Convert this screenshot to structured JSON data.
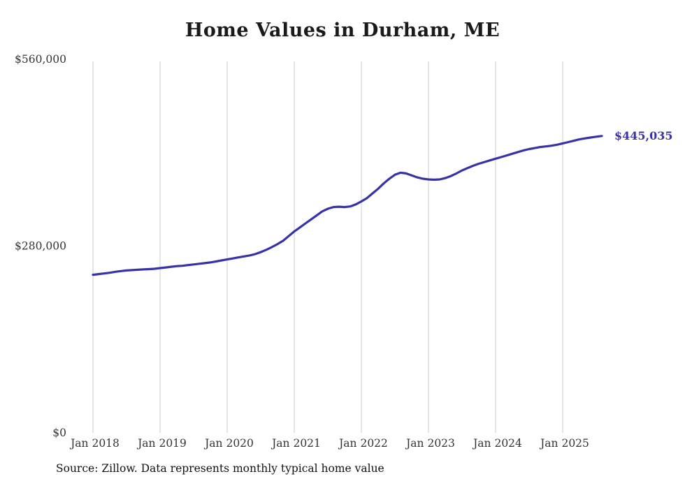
{
  "chart_data": {
    "type": "line",
    "title": "Home Values in Durham, ME",
    "source_note": "Source: Zillow. Data represents monthly typical home value",
    "end_label": "$445,035",
    "line_color": "#3733a6",
    "gridline_color": "#cccccc",
    "text_color": "#333333",
    "ylim": [
      0,
      560000
    ],
    "y_ticks": [
      {
        "label": "$0",
        "value": 0
      },
      {
        "label": "$280,000",
        "value": 280000
      },
      {
        "label": "$560,000",
        "value": 560000
      }
    ],
    "x_start": "2018-01",
    "x_end": "2025-08",
    "x_tick_labels": [
      "Jan 2018",
      "Jan 2019",
      "Jan 2020",
      "Jan 2021",
      "Jan 2022",
      "Jan 2023",
      "Jan 2024",
      "Jan 2025"
    ],
    "values": [
      237000,
      238000,
      239000,
      240000,
      241500,
      242500,
      243500,
      244000,
      244500,
      245000,
      245500,
      246000,
      247000,
      248000,
      249000,
      250000,
      250500,
      251500,
      252500,
      253500,
      254500,
      255500,
      257000,
      258500,
      260000,
      261500,
      263000,
      264500,
      266000,
      268000,
      271000,
      274500,
      278500,
      283000,
      288000,
      295000,
      302000,
      308000,
      314000,
      320000,
      326000,
      332000,
      336000,
      338500,
      339000,
      338500,
      339500,
      342500,
      347000,
      352000,
      359000,
      366000,
      374000,
      381000,
      387000,
      390000,
      389000,
      386000,
      383000,
      381000,
      380000,
      379500,
      380000,
      382000,
      385000,
      389000,
      393500,
      397000,
      400500,
      403500,
      406000,
      408500,
      411000,
      413500,
      416000,
      418500,
      421000,
      423500,
      425500,
      427000,
      428500,
      429500,
      430500,
      432000,
      434000,
      436000,
      438000,
      440000,
      441500,
      442800,
      444000,
      445035
    ]
  }
}
